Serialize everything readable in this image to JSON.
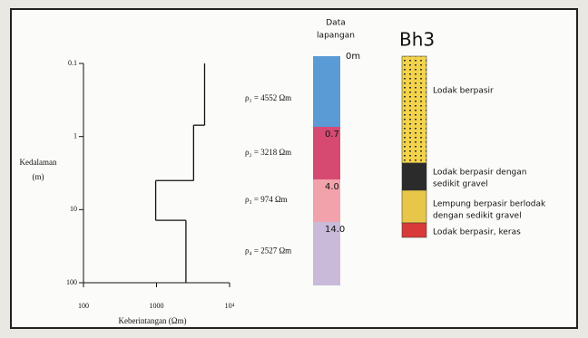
{
  "chart_data": {
    "type": "step",
    "values": [
      4552,
      3218,
      974,
      2527
    ],
    "value_labels": [
      "ρ₁ = 4552 Ωm",
      "ρ₂ = 3218 Ωm",
      "ρ₃ = 974 Ωm",
      "ρ₄ = 2527 Ωm"
    ],
    "depths": [
      0.7,
      4,
      14
    ],
    "xlabel": "Keberintangan (Ωm)",
    "ylabel": [
      "Kedalaman",
      "(m)"
    ],
    "xscale": "log",
    "yscale": "log",
    "y_inverted": true,
    "xlim": [
      100,
      10000
    ],
    "ylim": [
      0.1,
      100
    ],
    "xticks": [
      100,
      1000,
      {
        "value": 10000,
        "label": "10⁴"
      }
    ],
    "yticks": [
      0.1,
      1,
      10,
      100
    ],
    "color": "#111111"
  },
  "field_column": {
    "title": [
      "Data",
      "lapangan"
    ],
    "labels": [
      "0m",
      "0.7",
      "4.0",
      "14.0"
    ],
    "colors": [
      "#5b9bd5",
      "#d64a72",
      "#f2a2ab",
      "#c9bada"
    ]
  },
  "borehole": {
    "title": "Bh3",
    "layers": [
      {
        "label": [
          "Lodak berpasir"
        ],
        "color": "#f3d34a"
      },
      {
        "label": [
          "Lodak berpasir dengan",
          "sedikit gravel"
        ],
        "color": "#2b2b2b"
      },
      {
        "label": [
          "Lempung berpasir berlodak",
          "dengan sedikit gravel"
        ],
        "color": "#e8c64a"
      },
      {
        "label": [
          "Lodak berpasir, keras"
        ],
        "color": "#d83a3a"
      }
    ]
  }
}
